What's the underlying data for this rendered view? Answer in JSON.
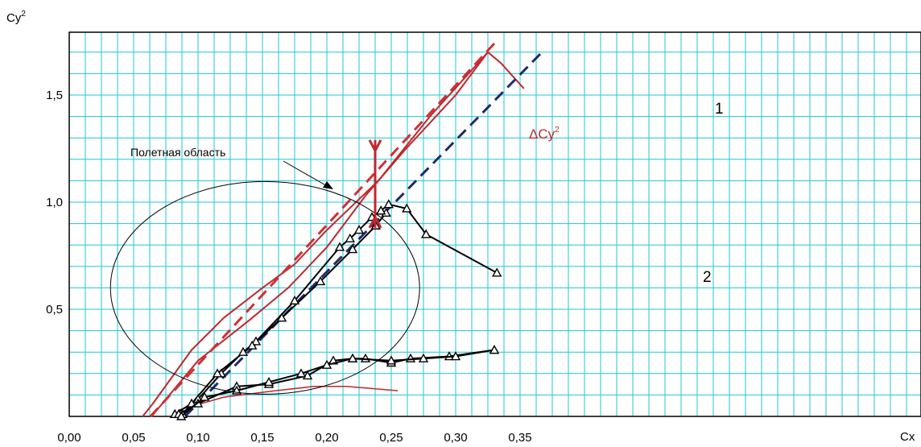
{
  "chart_data": {
    "type": "line",
    "xlabel": "Cx",
    "ylabel_base": "Cy",
    "ylabel_sup": "2",
    "xlim": [
      0.0,
      0.4
    ],
    "ylim": [
      0.0,
      1.8
    ],
    "x_ticks": [
      0.0,
      0.05,
      0.1,
      0.15,
      0.2,
      0.25,
      0.3,
      0.35
    ],
    "x_tick_labels": [
      "0,00",
      "0,05",
      "0,10",
      "0,15",
      "0,20",
      "0,25",
      "0,30",
      "0,35"
    ],
    "y_ticks": [
      0.5,
      1.0,
      1.5
    ],
    "y_tick_labels": [
      "0,5",
      "1,0",
      "1,5"
    ],
    "grid": true,
    "grid_color": "#1fc7d3",
    "annotations": {
      "flight_region_label": "Полетная область",
      "curve_1_label": "1",
      "curve_2_label": "2",
      "delta_label_base": "ΔCy",
      "delta_label_sup": "2"
    },
    "series": [
      {
        "style": "red-solid",
        "color": "#c0272d",
        "width": 2,
        "points": [
          [
            0.057,
            0.0
          ],
          [
            0.065,
            0.06
          ],
          [
            0.095,
            0.31
          ],
          [
            0.12,
            0.46
          ],
          [
            0.15,
            0.6
          ],
          [
            0.175,
            0.71
          ],
          [
            0.2,
            0.87
          ],
          [
            0.24,
            1.1
          ],
          [
            0.28,
            1.4
          ],
          [
            0.31,
            1.6
          ],
          [
            0.325,
            1.7
          ],
          [
            0.335,
            1.65
          ],
          [
            0.353,
            1.53
          ]
        ]
      },
      {
        "style": "red-solid",
        "color": "#c0272d",
        "width": 2,
        "points": [
          [
            0.064,
            0.0
          ],
          [
            0.075,
            0.08
          ],
          [
            0.1,
            0.26
          ],
          [
            0.14,
            0.45
          ],
          [
            0.17,
            0.6
          ],
          [
            0.2,
            0.79
          ],
          [
            0.23,
            1.03
          ],
          [
            0.26,
            1.24
          ],
          [
            0.3,
            1.5
          ],
          [
            0.325,
            1.7
          ]
        ]
      },
      {
        "style": "red-dashed",
        "color": "#d22f33",
        "width": 3,
        "dash": true,
        "points": [
          [
            0.063,
            0.0
          ],
          [
            0.333,
            1.76
          ]
        ]
      },
      {
        "style": "red-solid-thin",
        "color": "#c0272d",
        "width": 1.5,
        "points": [
          [
            0.085,
            0.03
          ],
          [
            0.12,
            0.09
          ],
          [
            0.16,
            0.12
          ],
          [
            0.19,
            0.14
          ],
          [
            0.215,
            0.14
          ],
          [
            0.235,
            0.13
          ],
          [
            0.255,
            0.12
          ]
        ]
      },
      {
        "style": "navy-dashed",
        "color": "#1f2a6e",
        "width": 3,
        "dash": true,
        "points": [
          [
            0.09,
            0.0
          ],
          [
            0.367,
            1.7
          ]
        ]
      },
      {
        "style": "black-triangles",
        "color": "#000000",
        "width": 2,
        "markers": true,
        "points": [
          [
            0.082,
            0.01
          ],
          [
            0.1,
            0.08
          ],
          [
            0.118,
            0.2
          ],
          [
            0.135,
            0.3
          ],
          [
            0.145,
            0.35
          ],
          [
            0.175,
            0.54
          ],
          [
            0.21,
            0.79
          ],
          [
            0.218,
            0.83
          ],
          [
            0.225,
            0.87
          ],
          [
            0.235,
            0.93
          ],
          [
            0.242,
            0.96
          ],
          [
            0.246,
            0.95
          ],
          [
            0.238,
            0.89
          ],
          [
            0.22,
            0.78
          ],
          [
            0.195,
            0.63
          ],
          [
            0.165,
            0.46
          ],
          [
            0.142,
            0.33
          ],
          [
            0.115,
            0.2
          ],
          [
            0.095,
            0.06
          ],
          [
            0.088,
            0.01
          ],
          [
            0.082,
            0.01
          ]
        ]
      },
      {
        "style": "black-triangles",
        "color": "#000000",
        "width": 2,
        "markers": true,
        "points": [
          [
            0.242,
            0.96
          ],
          [
            0.248,
            0.99
          ],
          [
            0.262,
            0.97
          ],
          [
            0.277,
            0.85
          ],
          [
            0.332,
            0.67
          ]
        ]
      },
      {
        "style": "black-triangles",
        "color": "#000000",
        "width": 2,
        "markers": true,
        "points": [
          [
            0.085,
            0.01
          ],
          [
            0.1,
            0.06
          ],
          [
            0.13,
            0.14
          ],
          [
            0.155,
            0.15
          ],
          [
            0.185,
            0.19
          ],
          [
            0.205,
            0.26
          ],
          [
            0.22,
            0.27
          ],
          [
            0.23,
            0.27
          ],
          [
            0.25,
            0.25
          ],
          [
            0.265,
            0.27
          ],
          [
            0.295,
            0.28
          ],
          [
            0.33,
            0.31
          ]
        ]
      },
      {
        "style": "black-triangles",
        "color": "#000000",
        "width": 2,
        "markers": true,
        "points": [
          [
            0.087,
            0.0
          ],
          [
            0.105,
            0.09
          ],
          [
            0.13,
            0.12
          ],
          [
            0.155,
            0.16
          ],
          [
            0.18,
            0.2
          ],
          [
            0.2,
            0.24
          ],
          [
            0.22,
            0.27
          ],
          [
            0.25,
            0.26
          ],
          [
            0.275,
            0.27
          ],
          [
            0.3,
            0.28
          ],
          [
            0.33,
            0.31
          ]
        ]
      }
    ]
  }
}
